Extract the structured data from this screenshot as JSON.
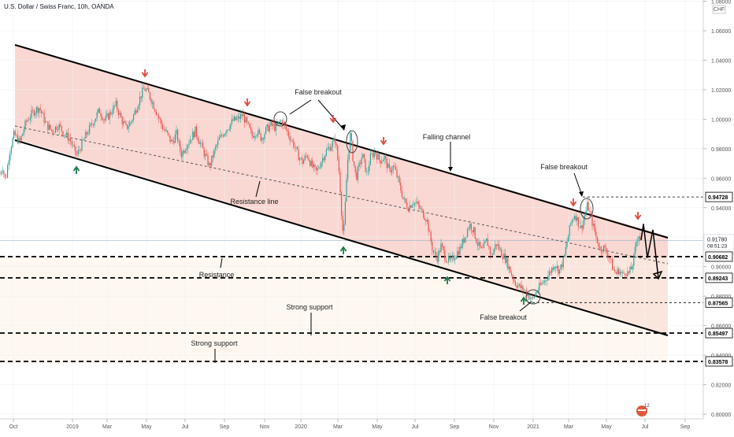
{
  "header": {
    "title": "U.S. Dollar / Swiss Franc, 10h, OANDA",
    "currency": "CHF"
  },
  "chart_data": {
    "type": "candlestick",
    "symbol": "USDCHF",
    "timeframe": "10h",
    "x_ticks": [
      "Oct",
      "2019",
      "Mar",
      "May",
      "Jul",
      "Sep",
      "Nov",
      "2020",
      "Mar",
      "May",
      "Jul",
      "Sep",
      "Nov",
      "2021",
      "Mar",
      "May",
      "Jul",
      "Sep"
    ],
    "y_ticks": [
      "1.08000",
      "1.06000",
      "1.04000",
      "1.02000",
      "1.00000",
      "0.98000",
      "0.96000",
      "0.94000",
      "0.92000",
      "0.90000",
      "0.88000",
      "0.86000",
      "0.84000",
      "0.82000",
      "0.80000"
    ],
    "ylim": [
      0.8,
      1.08
    ],
    "price_labels": {
      "p1": "0.94728",
      "current": "0.91780",
      "countdown": "08:51:23",
      "p2": "0.90682",
      "p3": "0.89243",
      "p4": "0.87565",
      "p5": "0.85497",
      "p6": "0.83578"
    },
    "annotations": {
      "false_breakout_1": "False breakout",
      "false_breakout_2": "False breakout",
      "false_breakout_3": "False breakout",
      "falling_channel": "Falling channel",
      "resistance_line": "Resistance line",
      "resistance": "Resistance",
      "strong_support_1": "Strong support",
      "strong_support_2": "Strong support"
    },
    "price_path": [
      [
        0,
        0.963
      ],
      [
        3,
        0.968
      ],
      [
        7,
        0.958
      ],
      [
        12,
        0.978
      ],
      [
        18,
        0.99
      ],
      [
        25,
        0.984
      ],
      [
        33,
        0.998
      ],
      [
        42,
        1.005
      ],
      [
        50,
        1.008
      ],
      [
        58,
        0.997
      ],
      [
        66,
        0.992
      ],
      [
        74,
        0.996
      ],
      [
        82,
        0.99
      ],
      [
        88,
        0.987
      ],
      [
        92,
        0.982
      ],
      [
        97,
        0.975
      ],
      [
        103,
        0.982
      ],
      [
        110,
        0.99
      ],
      [
        118,
        0.998
      ],
      [
        126,
        1.006
      ],
      [
        133,
        0.999
      ],
      [
        140,
        1.004
      ],
      [
        147,
        1.01
      ],
      [
        154,
        1.0
      ],
      [
        160,
        0.994
      ],
      [
        166,
        0.998
      ],
      [
        172,
        1.006
      ],
      [
        178,
        1.015
      ],
      [
        183,
        1.021
      ],
      [
        188,
        1.018
      ],
      [
        194,
        1.011
      ],
      [
        200,
        1.003
      ],
      [
        206,
        0.995
      ],
      [
        212,
        0.99
      ],
      [
        218,
        0.984
      ],
      [
        224,
        0.99
      ],
      [
        230,
        0.976
      ],
      [
        236,
        0.982
      ],
      [
        242,
        0.987
      ],
      [
        248,
        0.992
      ],
      [
        254,
        0.984
      ],
      [
        260,
        0.976
      ],
      [
        266,
        0.968
      ],
      [
        272,
        0.978
      ],
      [
        278,
        0.986
      ],
      [
        284,
        0.991
      ],
      [
        290,
        0.995
      ],
      [
        296,
        0.999
      ],
      [
        302,
        1.0
      ],
      [
        308,
        1.003
      ],
      [
        314,
        0.996
      ],
      [
        320,
        0.989
      ],
      [
        326,
        0.992
      ],
      [
        332,
        0.987
      ],
      [
        338,
        0.993
      ],
      [
        344,
        0.996
      ],
      [
        350,
        0.994
      ],
      [
        356,
        0.999
      ],
      [
        360,
        0.997
      ],
      [
        366,
        0.99
      ],
      [
        372,
        0.984
      ],
      [
        378,
        0.976
      ],
      [
        384,
        0.971
      ],
      [
        390,
        0.976
      ],
      [
        396,
        0.968
      ],
      [
        402,
        0.964
      ],
      [
        408,
        0.972
      ],
      [
        414,
        0.978
      ],
      [
        420,
        0.982
      ],
      [
        426,
        0.986
      ],
      [
        431,
        0.962
      ],
      [
        434,
        0.934
      ],
      [
        436,
        0.918
      ],
      [
        438,
        0.938
      ],
      [
        441,
        0.97
      ],
      [
        445,
        0.99
      ],
      [
        448,
        0.974
      ],
      [
        452,
        0.96
      ],
      [
        456,
        0.968
      ],
      [
        460,
        0.976
      ],
      [
        466,
        0.962
      ],
      [
        470,
        0.974
      ],
      [
        476,
        0.978
      ],
      [
        482,
        0.972
      ],
      [
        488,
        0.974
      ],
      [
        494,
        0.965
      ],
      [
        500,
        0.968
      ],
      [
        506,
        0.958
      ],
      [
        512,
        0.946
      ],
      [
        518,
        0.94
      ],
      [
        524,
        0.944
      ],
      [
        530,
        0.942
      ],
      [
        536,
        0.937
      ],
      [
        542,
        0.932
      ],
      [
        546,
        0.92
      ],
      [
        550,
        0.91
      ],
      [
        555,
        0.906
      ],
      [
        560,
        0.914
      ],
      [
        566,
        0.906
      ],
      [
        572,
        0.903
      ],
      [
        578,
        0.908
      ],
      [
        584,
        0.912
      ],
      [
        590,
        0.92
      ],
      [
        596,
        0.929
      ],
      [
        601,
        0.925
      ],
      [
        606,
        0.916
      ],
      [
        612,
        0.91
      ],
      [
        618,
        0.918
      ],
      [
        624,
        0.907
      ],
      [
        630,
        0.916
      ],
      [
        636,
        0.91
      ],
      [
        642,
        0.905
      ],
      [
        648,
        0.897
      ],
      [
        654,
        0.889
      ],
      [
        660,
        0.886
      ],
      [
        666,
        0.884
      ],
      [
        672,
        0.88
      ],
      [
        676,
        0.877
      ],
      [
        680,
        0.882
      ],
      [
        686,
        0.887
      ],
      [
        692,
        0.891
      ],
      [
        698,
        0.896
      ],
      [
        704,
        0.902
      ],
      [
        710,
        0.897
      ],
      [
        716,
        0.905
      ],
      [
        720,
        0.917
      ],
      [
        725,
        0.93
      ],
      [
        730,
        0.936
      ],
      [
        734,
        0.93
      ],
      [
        738,
        0.926
      ],
      [
        742,
        0.934
      ],
      [
        746,
        0.942
      ],
      [
        750,
        0.934
      ],
      [
        754,
        0.926
      ],
      [
        758,
        0.918
      ],
      [
        762,
        0.912
      ],
      [
        766,
        0.913
      ],
      [
        770,
        0.91
      ],
      [
        774,
        0.906
      ],
      [
        778,
        0.899
      ],
      [
        782,
        0.895
      ],
      [
        786,
        0.898
      ],
      [
        790,
        0.894
      ],
      [
        794,
        0.897
      ],
      [
        798,
        0.895
      ],
      [
        802,
        0.899
      ],
      [
        805,
        0.906
      ],
      [
        808,
        0.917
      ],
      [
        811,
        0.922
      ],
      [
        814,
        0.918
      ]
    ],
    "projection": [
      [
        814,
        0.918
      ],
      [
        817,
        0.929
      ],
      [
        822,
        0.906
      ],
      [
        829,
        0.925
      ],
      [
        836,
        0.892
      ]
    ]
  }
}
